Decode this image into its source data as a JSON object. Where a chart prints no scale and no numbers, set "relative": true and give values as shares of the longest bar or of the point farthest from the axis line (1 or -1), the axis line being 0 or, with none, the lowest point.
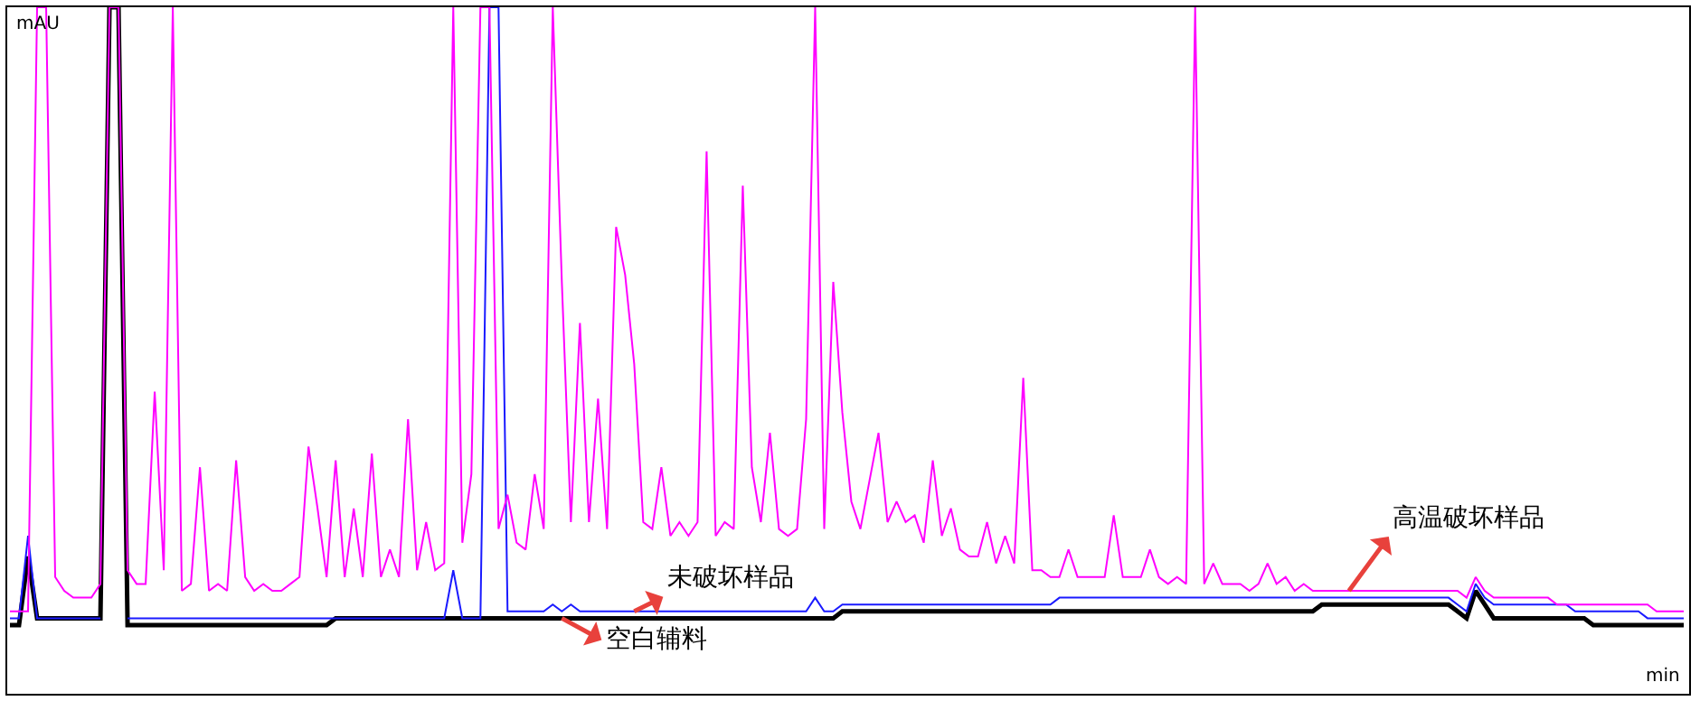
{
  "chart_data": {
    "type": "line",
    "relative": true,
    "xlabel": "min",
    "ylabel": "mAU",
    "line_style": "solid",
    "categories": [
      null,
      null,
      null,
      null,
      null,
      null,
      null,
      null,
      null,
      null,
      null,
      null,
      null,
      null,
      null,
      null,
      null,
      null,
      null,
      null,
      null,
      null,
      null,
      null,
      null,
      null,
      null,
      null,
      null,
      null,
      null,
      null,
      null,
      null,
      null,
      null,
      null,
      null,
      null,
      null,
      null,
      null,
      null,
      null,
      null,
      null,
      null,
      null,
      null,
      null,
      null,
      null,
      null,
      null,
      null,
      null,
      null,
      null,
      null,
      null,
      null,
      null,
      null,
      null,
      null,
      null,
      null,
      null,
      null,
      null,
      null,
      null,
      null,
      null,
      null,
      null,
      null,
      null,
      null,
      null,
      null,
      null,
      null,
      null,
      null,
      null,
      null,
      null,
      null,
      null,
      null,
      null,
      null,
      null,
      null,
      null,
      null,
      null,
      null,
      null,
      null,
      null,
      null,
      null,
      null,
      null,
      null,
      null,
      null,
      null,
      null,
      null,
      null,
      null,
      null,
      null,
      null,
      null,
      null,
      null,
      null,
      null,
      null,
      null,
      null,
      null,
      null,
      null,
      null,
      null,
      null,
      null,
      null,
      null,
      null,
      null,
      null,
      null,
      null,
      null,
      null,
      null,
      null,
      null,
      null,
      null,
      null,
      null,
      null,
      null,
      null,
      null,
      null,
      null,
      null,
      null,
      null,
      null,
      null,
      null,
      null,
      null,
      null,
      null,
      null,
      null,
      null,
      null,
      null,
      null,
      null,
      null,
      null,
      null,
      null,
      null,
      null,
      null,
      null,
      null,
      null,
      null,
      null,
      null,
      null,
      null
    ],
    "series": [
      {
        "name": "高温破坏样品",
        "color": "#ff00ff",
        "values": [
          0.12,
          0.12,
          0.12,
          1,
          1,
          0.17,
          0.15,
          0.14,
          0.14,
          0.14,
          0.16,
          1,
          1,
          0.18,
          0.16,
          0.16,
          0.44,
          0.18,
          1,
          0.15,
          0.16,
          0.33,
          0.15,
          0.16,
          0.15,
          0.34,
          0.17,
          0.15,
          0.16,
          0.15,
          0.15,
          0.16,
          0.17,
          0.36,
          0.27,
          0.17,
          0.34,
          0.17,
          0.27,
          0.17,
          0.35,
          0.17,
          0.21,
          0.17,
          0.4,
          0.18,
          0.25,
          0.18,
          0.19,
          1,
          0.22,
          0.32,
          1,
          1,
          0.24,
          0.29,
          0.22,
          0.21,
          0.32,
          0.24,
          1,
          0.6,
          0.25,
          0.54,
          0.25,
          0.43,
          0.24,
          0.68,
          0.61,
          0.48,
          0.25,
          0.24,
          0.33,
          0.23,
          0.25,
          0.23,
          0.25,
          0.79,
          0.23,
          0.25,
          0.24,
          0.74,
          0.33,
          0.25,
          0.38,
          0.24,
          0.23,
          0.24,
          0.4,
          1,
          0.24,
          0.6,
          0.41,
          0.28,
          0.24,
          0.31,
          0.38,
          0.25,
          0.28,
          0.25,
          0.26,
          0.22,
          0.34,
          0.23,
          0.27,
          0.21,
          0.2,
          0.2,
          0.25,
          0.19,
          0.23,
          0.19,
          0.46,
          0.18,
          0.18,
          0.17,
          0.17,
          0.21,
          0.17,
          0.17,
          0.17,
          0.17,
          0.26,
          0.17,
          0.17,
          0.17,
          0.21,
          0.17,
          0.16,
          0.17,
          0.16,
          1,
          0.16,
          0.19,
          0.16,
          0.16,
          0.16,
          0.15,
          0.16,
          0.19,
          0.16,
          0.17,
          0.15,
          0.16,
          0.15,
          0.15,
          0.15,
          0.15,
          0.15,
          0.15,
          0.15,
          0.15,
          0.15,
          0.15,
          0.15,
          0.15,
          0.15,
          0.15,
          0.15,
          0.15,
          0.15,
          0.14,
          0.17,
          0.15,
          0.14,
          0.14,
          0.14,
          0.14,
          0.14,
          0.14,
          0.14,
          0.13,
          0.13,
          0.13,
          0.13,
          0.13,
          0.13,
          0.13,
          0.13,
          0.13,
          0.13,
          0.13,
          0.12,
          0.12,
          0.12,
          0.12
        ]
      },
      {
        "name": "未破坏样品",
        "color": "#1a1aff",
        "values": [
          0.11,
          0.11,
          0.23,
          0.11,
          0.11,
          0.11,
          0.11,
          0.11,
          0.11,
          0.11,
          0.11,
          null,
          null,
          0.11,
          0.11,
          0.11,
          0.11,
          0.11,
          0.11,
          0.11,
          0.11,
          0.11,
          0.11,
          0.11,
          0.11,
          0.11,
          0.11,
          0.11,
          0.11,
          0.11,
          0.11,
          0.11,
          0.11,
          0.11,
          0.11,
          0.11,
          0.11,
          0.11,
          0.11,
          0.11,
          0.11,
          0.11,
          0.11,
          0.11,
          0.11,
          0.11,
          0.11,
          0.11,
          0.11,
          0.18,
          0.11,
          0.11,
          0.11,
          1,
          1,
          0.12,
          0.12,
          0.12,
          0.12,
          0.12,
          0.13,
          0.12,
          0.13,
          0.12,
          0.12,
          0.12,
          0.12,
          0.12,
          0.12,
          0.12,
          0.12,
          0.12,
          0.12,
          0.12,
          0.12,
          0.12,
          0.12,
          0.12,
          0.12,
          0.12,
          0.12,
          0.12,
          0.12,
          0.12,
          0.12,
          0.12,
          0.12,
          0.12,
          0.12,
          0.14,
          0.12,
          0.12,
          0.13,
          0.13,
          0.13,
          0.13,
          0.13,
          0.13,
          0.13,
          0.13,
          0.13,
          0.13,
          0.13,
          0.13,
          0.13,
          0.13,
          0.13,
          0.13,
          0.13,
          0.13,
          0.13,
          0.13,
          0.13,
          0.13,
          0.13,
          0.13,
          0.14,
          0.14,
          0.14,
          0.14,
          0.14,
          0.14,
          0.14,
          0.14,
          0.14,
          0.14,
          0.14,
          0.14,
          0.14,
          0.14,
          0.14,
          0.14,
          0.14,
          0.14,
          0.14,
          0.14,
          0.14,
          0.14,
          0.14,
          0.14,
          0.14,
          0.14,
          0.14,
          0.14,
          0.14,
          0.14,
          0.14,
          0.14,
          0.14,
          0.14,
          0.14,
          0.14,
          0.14,
          0.14,
          0.14,
          0.14,
          0.14,
          0.14,
          0.14,
          0.14,
          0.13,
          0.12,
          0.16,
          0.14,
          0.13,
          0.13,
          0.13,
          0.13,
          0.13,
          0.13,
          0.13,
          0.13,
          0.13,
          0.12,
          0.12,
          0.12,
          0.12,
          0.12,
          0.12,
          0.12,
          0.12,
          0.11,
          0.11,
          0.11,
          0.11,
          0.11
        ]
      },
      {
        "name": "空白辅料",
        "color": "#000000",
        "values": [
          0.1,
          0.1,
          0.2,
          0.11,
          0.11,
          0.11,
          0.11,
          0.11,
          0.11,
          0.11,
          0.11,
          1,
          1,
          0.1,
          0.1,
          0.1,
          0.1,
          0.1,
          0.1,
          0.1,
          0.1,
          0.1,
          0.1,
          0.1,
          0.1,
          0.1,
          0.1,
          0.1,
          0.1,
          0.1,
          0.1,
          0.1,
          0.1,
          0.1,
          0.1,
          0.1,
          0.11,
          0.11,
          0.11,
          0.11,
          0.11,
          0.11,
          0.11,
          0.11,
          0.11,
          0.11,
          0.11,
          0.11,
          0.11,
          0.11,
          0.11,
          0.11,
          0.11,
          0.11,
          0.11,
          0.11,
          0.11,
          0.11,
          0.11,
          0.11,
          0.11,
          0.11,
          0.11,
          0.11,
          0.11,
          0.11,
          0.11,
          0.11,
          0.11,
          0.11,
          0.11,
          0.11,
          0.11,
          0.11,
          0.11,
          0.11,
          0.11,
          0.11,
          0.11,
          0.11,
          0.11,
          0.11,
          0.11,
          0.11,
          0.11,
          0.11,
          0.11,
          0.11,
          0.11,
          0.11,
          0.11,
          0.11,
          0.12,
          0.12,
          0.12,
          0.12,
          0.12,
          0.12,
          0.12,
          0.12,
          0.12,
          0.12,
          0.12,
          0.12,
          0.12,
          0.12,
          0.12,
          0.12,
          0.12,
          0.12,
          0.12,
          0.12,
          0.12,
          0.12,
          0.12,
          0.12,
          0.12,
          0.12,
          0.12,
          0.12,
          0.12,
          0.12,
          0.12,
          0.12,
          0.12,
          0.12,
          0.12,
          0.12,
          0.12,
          0.12,
          0.12,
          0.12,
          0.12,
          0.12,
          0.12,
          0.12,
          0.12,
          0.12,
          0.12,
          0.12,
          0.12,
          0.12,
          0.12,
          0.12,
          0.12,
          0.13,
          0.13,
          0.13,
          0.13,
          0.13,
          0.13,
          0.13,
          0.13,
          0.13,
          0.13,
          0.13,
          0.13,
          0.13,
          0.13,
          0.13,
          0.12,
          0.11,
          0.15,
          0.13,
          0.11,
          0.11,
          0.11,
          0.11,
          0.11,
          0.11,
          0.11,
          0.11,
          0.11,
          0.11,
          0.11,
          0.1,
          0.1,
          0.1,
          0.1,
          0.1,
          0.1,
          0.1,
          0.1,
          0.1,
          0.1,
          0.1
        ]
      }
    ]
  }
}
